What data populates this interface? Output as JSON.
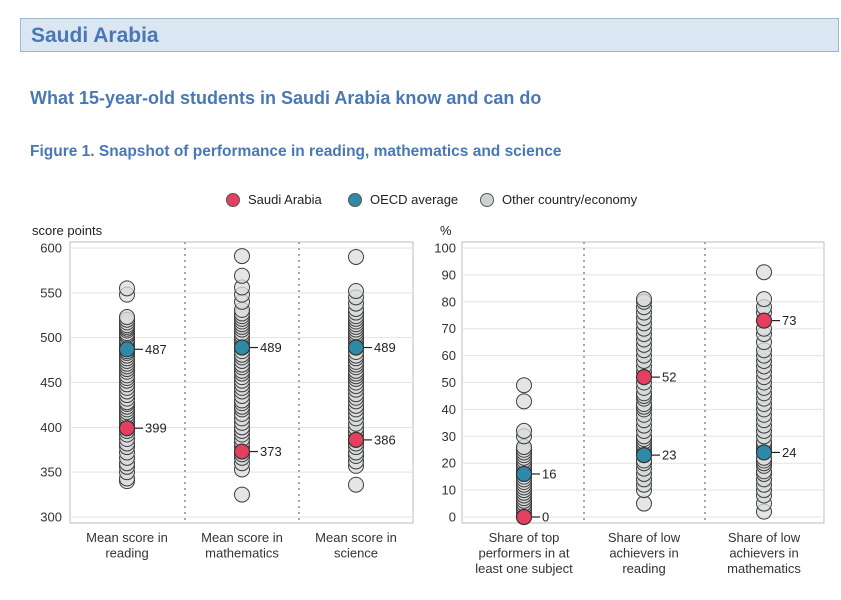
{
  "header": {
    "country": "Saudi Arabia",
    "section_title": "What 15-year-old students in Saudi Arabia know and can do",
    "figure_title": "Figure 1. Snapshot of performance in reading, mathematics and science"
  },
  "legend": [
    {
      "label": "Saudi Arabia",
      "color": "#e2405e"
    },
    {
      "label": "OECD average",
      "color": "#2e8aa7"
    },
    {
      "label": "Other country/economy",
      "color": "#cfd2d3"
    }
  ],
  "colors": {
    "country": "#e2405e",
    "oecd": "#2e8aa7",
    "other": "#d9dcdd"
  },
  "chart_data": [
    {
      "type": "scatter",
      "ylabel": "score points",
      "ylim": [
        300,
        600
      ],
      "yticks": [
        300,
        350,
        400,
        450,
        500,
        550,
        600
      ],
      "categories": [
        "Mean score in reading",
        "Mean score in mathematics",
        "Mean score in science"
      ],
      "category_lines": [
        [
          "Mean score in",
          "reading"
        ],
        [
          "Mean score in",
          "mathematics"
        ],
        [
          "Mean score in",
          "science"
        ]
      ],
      "series": [
        {
          "name": "Saudi Arabia",
          "values": [
            399,
            373,
            386
          ],
          "labels": [
            "399",
            "373",
            "386"
          ]
        },
        {
          "name": "OECD average",
          "values": [
            487,
            489,
            489
          ],
          "labels": [
            "487",
            "489",
            "489"
          ]
        },
        {
          "name": "Other country/economy",
          "values": [
            [
              340,
              343,
              350,
              356,
              360,
              366,
              372,
              378,
              382,
              387,
              392,
              396,
              402,
              406,
              408,
              411,
              414,
              417,
              420,
              423,
              426,
              428,
              432,
              436,
              440,
              444,
              448,
              452,
              455,
              458,
              462,
              465,
              468,
              471,
              474,
              477,
              480,
              483,
              485,
              490,
              493,
              496,
              498,
              501,
              503,
              505,
              508,
              510,
              512,
              514,
              517,
              520,
              523,
              548,
              555
            ],
            [
              325,
              353,
              360,
              366,
              370,
              378,
              383,
              387,
              392,
              396,
              400,
              405,
              410,
              415,
              420,
              423,
              427,
              430,
              435,
              440,
              444,
              448,
              452,
              456,
              460,
              463,
              467,
              470,
              474,
              478,
              481,
              485,
              493,
              496,
              499,
              502,
              505,
              509,
              512,
              515,
              518,
              521,
              524,
              527,
              531,
              540,
              548,
              556,
              569,
              591
            ],
            [
              336,
              357,
              362,
              368,
              372,
              378,
              382,
              391,
              395,
              399,
              404,
              410,
              415,
              420,
              424,
              429,
              433,
              437,
              442,
              446,
              450,
              454,
              457,
              460,
              463,
              467,
              470,
              473,
              477,
              480,
              484,
              494,
              497,
              500,
              503,
              506,
              509,
              512,
              515,
              518,
              521,
              524,
              528,
              532,
              538,
              545,
              552,
              590
            ]
          ]
        }
      ]
    },
    {
      "type": "scatter",
      "ylabel": "%",
      "ylim": [
        0,
        100
      ],
      "yticks": [
        0,
        10,
        20,
        30,
        40,
        50,
        60,
        70,
        80,
        90,
        100
      ],
      "categories": [
        "Share of top performers in at least one subject",
        "Share of low achievers in reading",
        "Share of low achievers in mathematics"
      ],
      "category_lines": [
        [
          "Share of top",
          "performers in at",
          "least one subject"
        ],
        [
          "Share of low",
          "achievers in",
          "reading"
        ],
        [
          "Share of low",
          "achievers in",
          "mathematics"
        ]
      ],
      "series": [
        {
          "name": "Saudi Arabia",
          "values": [
            0,
            52,
            73
          ],
          "labels": [
            "0",
            "52",
            "73"
          ]
        },
        {
          "name": "OECD average",
          "values": [
            16,
            23,
            24
          ],
          "labels": [
            "16",
            "23",
            "24"
          ]
        },
        {
          "name": "Other country/economy",
          "values": [
            [
              1,
              2,
              3,
              4,
              5,
              6,
              7,
              8,
              9,
              10,
              11,
              12,
              13,
              14,
              15,
              17,
              18,
              19,
              20,
              21,
              22,
              23,
              24,
              25,
              26,
              30,
              32,
              43,
              49
            ],
            [
              5,
              10,
              12,
              14,
              16,
              18,
              20,
              21,
              24,
              25,
              26,
              27,
              28,
              29,
              30,
              32,
              34,
              36,
              38,
              40,
              41,
              42,
              44,
              45,
              46,
              48,
              50,
              54,
              56,
              58,
              60,
              62,
              64,
              66,
              68,
              70,
              72,
              74,
              76,
              78,
              80,
              81
            ],
            [
              2,
              5,
              8,
              10,
              12,
              14,
              16,
              17,
              19,
              20,
              21,
              22,
              25,
              26,
              27,
              28,
              30,
              32,
              34,
              36,
              38,
              40,
              42,
              44,
              46,
              48,
              50,
              52,
              54,
              56,
              58,
              60,
              62,
              65,
              68,
              70,
              76,
              78,
              81,
              91
            ]
          ]
        }
      ]
    }
  ]
}
